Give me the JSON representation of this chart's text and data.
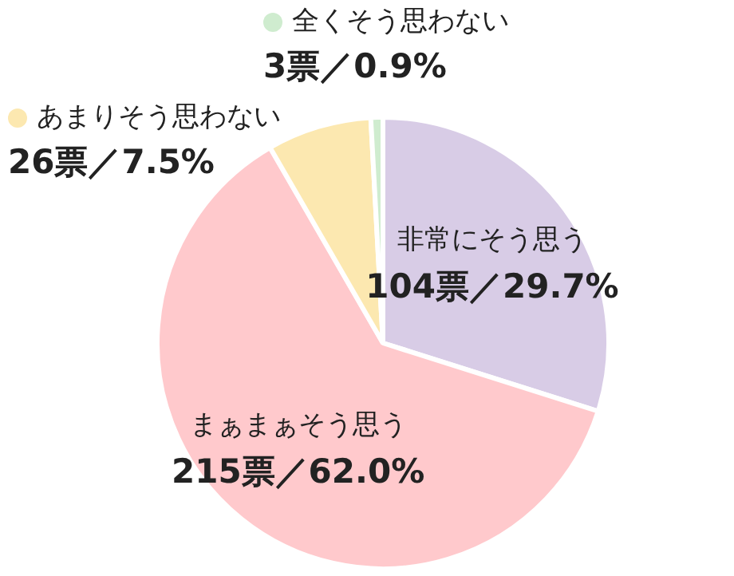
{
  "chart_data": {
    "type": "pie",
    "categories": [
      "非常にそう思う",
      "まぁまぁそう思う",
      "あまりそう思わない",
      "全くそう思わない"
    ],
    "values": [
      104,
      215,
      26,
      3
    ],
    "value_labels": [
      "104票／29.7%",
      "215票／62.0%",
      "26票／7.5%",
      "3票／0.9%"
    ],
    "colors": [
      "#d8cce6",
      "#ffc9cc",
      "#fce8b0",
      "#cfeccf"
    ],
    "legend": "top left"
  }
}
